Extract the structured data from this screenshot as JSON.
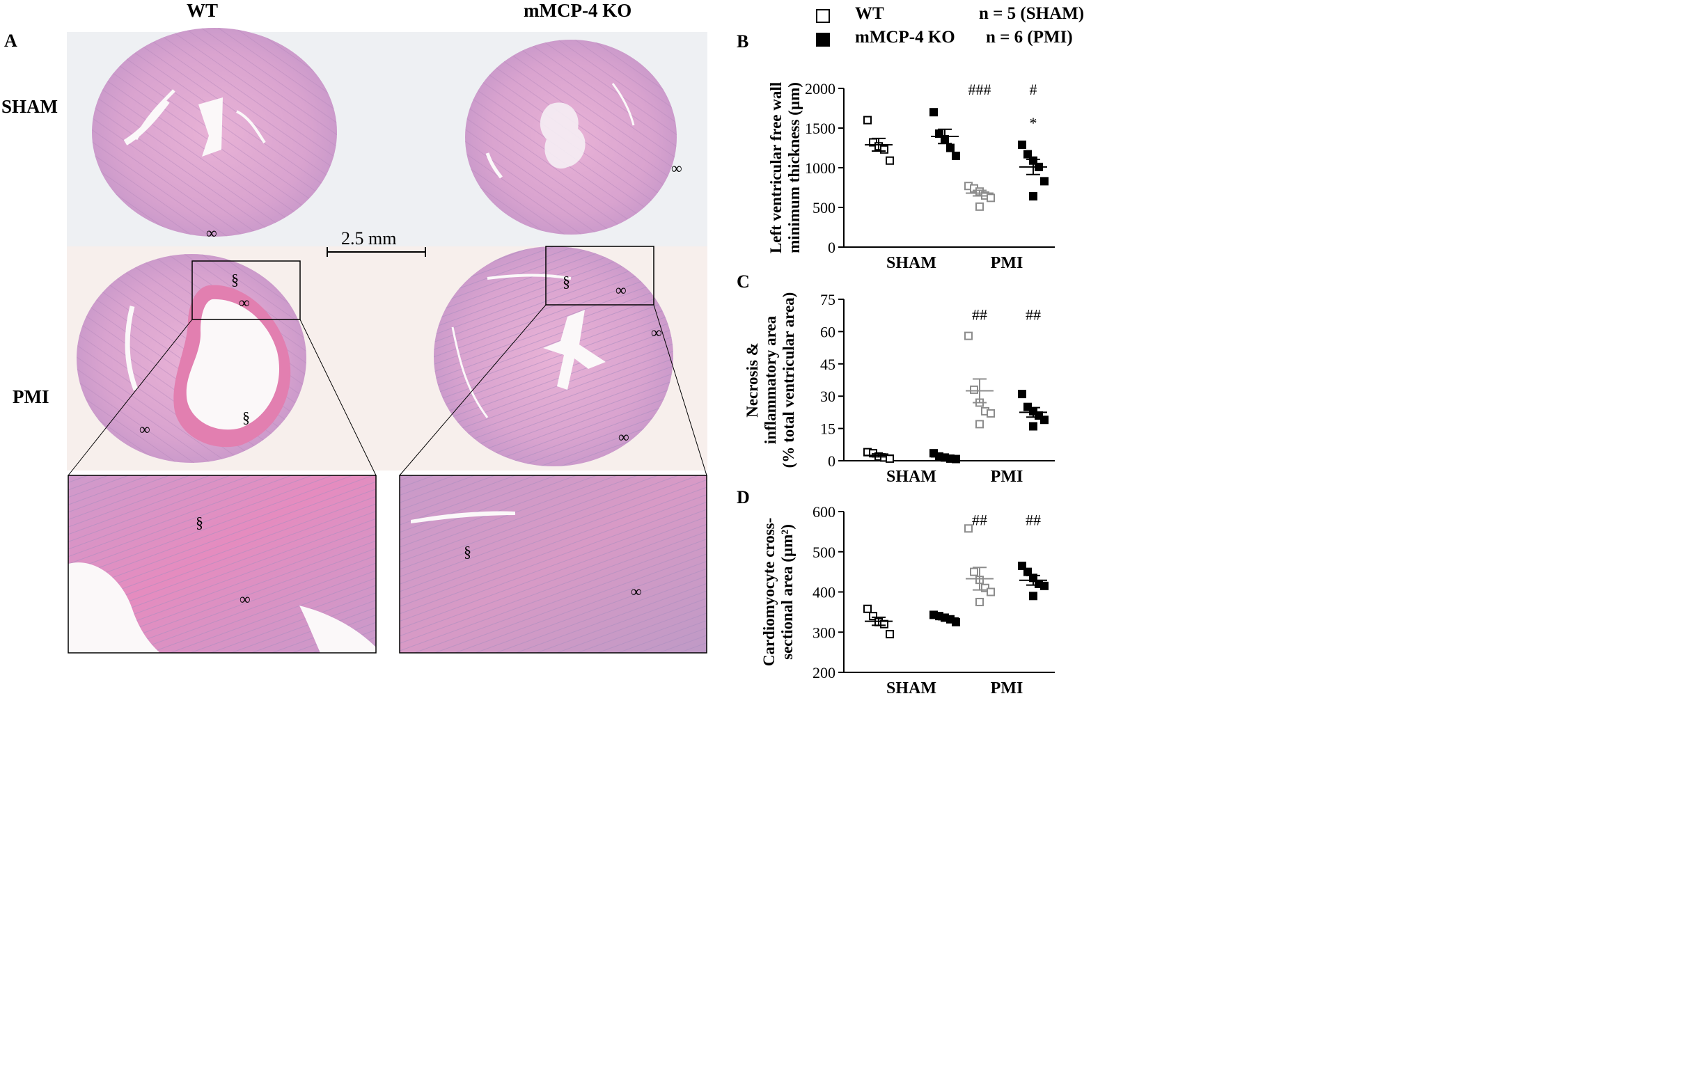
{
  "panel_a": {
    "letter": "A",
    "col_headers": [
      "WT",
      "mMCP-4 KO"
    ],
    "row_labels": [
      "SHAM",
      "PMI"
    ],
    "scale_bar": "2.5 mm",
    "symbols": {
      "necrosis": "§",
      "inflammation": "∞"
    },
    "colors": {
      "he_pink": "#e6a9d2",
      "he_violet": "#c59ac9",
      "necrosis_pink": "#e07fae",
      "lumen": "#fbf8f9"
    }
  },
  "legend": {
    "entries": [
      {
        "label": "WT",
        "marker": "open-square"
      },
      {
        "label": "mMCP-4 KO",
        "marker": "filled-square"
      }
    ],
    "n_notes": [
      "n = 5 (SHAM)",
      "n = 6 (PMI)"
    ]
  },
  "chart_data": [
    {
      "panel": "B",
      "type": "scatter",
      "categories": [
        "SHAM",
        "PMI"
      ],
      "ylabel_lines": [
        "Left ventricular free wall",
        "minimum thickness (µm)"
      ],
      "ylim": [
        0,
        2000
      ],
      "yticks": [
        0,
        500,
        1000,
        1500,
        2000
      ],
      "series": [
        {
          "name": "WT",
          "category": "SHAM",
          "points": [
            1600,
            1320,
            1270,
            1230,
            1090
          ],
          "mean": 1290,
          "sem": 80
        },
        {
          "name": "mMCP-4 KO",
          "category": "SHAM",
          "points": [
            1700,
            1430,
            1360,
            1250,
            1150
          ],
          "mean": 1395,
          "sem": 90
        },
        {
          "name": "WT",
          "category": "PMI",
          "points": [
            770,
            740,
            700,
            650,
            620,
            510
          ],
          "mean": 680,
          "sem": 35
        },
        {
          "name": "mMCP-4 KO",
          "category": "PMI",
          "points": [
            1290,
            1170,
            1090,
            1010,
            830,
            640
          ],
          "mean": 1010,
          "sem": 95
        }
      ],
      "annotations": [
        {
          "text": "###",
          "category": "PMI",
          "group": 0,
          "y": 1990
        },
        {
          "text": "#",
          "category": "PMI",
          "group": 1,
          "y": 1990
        },
        {
          "text": "*",
          "category": "PMI",
          "group": 1,
          "y": 1570
        }
      ]
    },
    {
      "panel": "C",
      "type": "scatter",
      "categories": [
        "SHAM",
        "PMI"
      ],
      "ylabel_lines": [
        "Necrosis &",
        "inflammatory area",
        "(% total ventricular area)"
      ],
      "ylim": [
        0,
        75
      ],
      "yticks": [
        0,
        15,
        30,
        45,
        60,
        75
      ],
      "series": [
        {
          "name": "WT",
          "category": "SHAM",
          "points": [
            4,
            3.5,
            2,
            1.5,
            1
          ],
          "mean": 2.5,
          "sem": 0.7
        },
        {
          "name": "mMCP-4 KO",
          "category": "SHAM",
          "points": [
            3.5,
            2,
            1.5,
            1,
            0.8
          ],
          "mean": 1.8,
          "sem": 0.5
        },
        {
          "name": "WT",
          "category": "PMI",
          "points": [
            58,
            33,
            27,
            23,
            22,
            17
          ],
          "mean": 32.5,
          "sem": 5.5
        },
        {
          "name": "mMCP-4 KO",
          "category": "PMI",
          "points": [
            31,
            25,
            23,
            21,
            19,
            16
          ],
          "mean": 22.5,
          "sem": 2.2
        }
      ],
      "annotations": [
        {
          "text": "##",
          "category": "PMI",
          "group": 0,
          "y": 68
        },
        {
          "text": "##",
          "category": "PMI",
          "group": 1,
          "y": 68
        }
      ]
    },
    {
      "panel": "D",
      "type": "scatter",
      "categories": [
        "SHAM",
        "PMI"
      ],
      "ylabel_lines": [
        "Cardiomyocyte cross-",
        "sectional area (µm²)"
      ],
      "ylim": [
        200,
        600
      ],
      "yticks": [
        200,
        300,
        400,
        500,
        600
      ],
      "series": [
        {
          "name": "WT",
          "category": "SHAM",
          "points": [
            358,
            340,
            325,
            320,
            295
          ],
          "mean": 327,
          "sem": 10
        },
        {
          "name": "mMCP-4 KO",
          "category": "SHAM",
          "points": [
            343,
            340,
            336,
            332,
            325
          ],
          "mean": 335,
          "sem": 4
        },
        {
          "name": "WT",
          "category": "PMI",
          "points": [
            558,
            450,
            430,
            410,
            400,
            375
          ],
          "mean": 433,
          "sem": 28
        },
        {
          "name": "mMCP-4 KO",
          "category": "PMI",
          "points": [
            465,
            450,
            435,
            420,
            415,
            390
          ],
          "mean": 429,
          "sem": 12
        }
      ],
      "annotations": [
        {
          "text": "##",
          "category": "PMI",
          "group": 0,
          "y": 580
        },
        {
          "text": "##",
          "category": "PMI",
          "group": 1,
          "y": 580
        }
      ]
    }
  ]
}
